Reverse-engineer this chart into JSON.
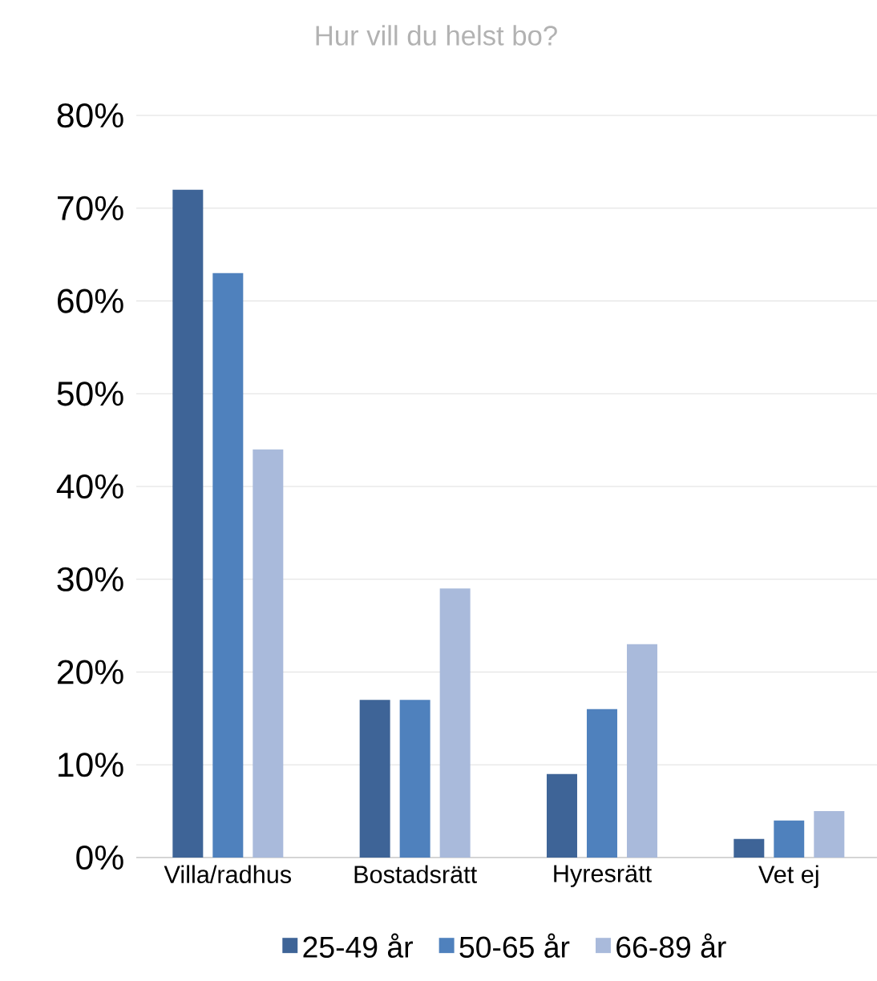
{
  "chart_data": {
    "type": "bar",
    "title": "Hur vill du helst bo?",
    "categories": [
      "Villa/radhus",
      "Bostadsrätt",
      "Hyresrätt",
      "Vet ej"
    ],
    "series": [
      {
        "name": "25-49 år",
        "color": "#3e6497",
        "values": [
          72,
          17,
          9,
          2
        ]
      },
      {
        "name": "50-65 år",
        "color": "#4f81bd",
        "values": [
          63,
          17,
          16,
          4
        ]
      },
      {
        "name": "66-89 år",
        "color": "#a9badb",
        "values": [
          44,
          29,
          23,
          5
        ]
      }
    ],
    "ylim": [
      0,
      80
    ],
    "yticks": [
      {
        "value": 0,
        "label": "0%"
      },
      {
        "value": 10,
        "label": "10%"
      },
      {
        "value": 20,
        "label": "20%"
      },
      {
        "value": 30,
        "label": "30%"
      },
      {
        "value": 40,
        "label": "40%"
      },
      {
        "value": 50,
        "label": "50%"
      },
      {
        "value": 60,
        "label": "60%"
      },
      {
        "value": 70,
        "label": "70%"
      },
      {
        "value": 80,
        "label": "80%"
      }
    ],
    "grid": "y",
    "legend": "bottom"
  }
}
